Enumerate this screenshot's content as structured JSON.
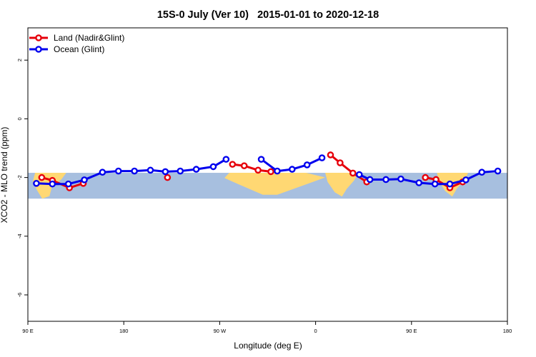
{
  "chart_data": {
    "type": "line",
    "title": "15S-0 July (Ver 10)   2015-01-01 to 2020-12-18",
    "xlabel": "Longitude (deg E)",
    "ylabel": "XCO2 - MLO trend (ppm)",
    "xlim": [
      90,
      540
    ],
    "ylim": [
      -6.9,
      3.1
    ],
    "x_ticks": [
      {
        "value": 90,
        "label": "90 E"
      },
      {
        "value": 180,
        "label": "180"
      },
      {
        "value": 270,
        "label": "90 W"
      },
      {
        "value": 360,
        "label": "0"
      },
      {
        "value": 450,
        "label": "90 E"
      },
      {
        "value": 540,
        "label": "180"
      }
    ],
    "y_ticks": [
      {
        "value": 2,
        "label": "2"
      },
      {
        "value": 0,
        "label": "0"
      },
      {
        "value": -2,
        "label": "-2"
      },
      {
        "value": -4,
        "label": "-4"
      },
      {
        "value": -6,
        "label": "-6"
      }
    ],
    "map_band": {
      "y_top": -1.84,
      "y_bottom": -2.72,
      "ocean_color": "#a7bfdf",
      "land_color": "#ffd873"
    },
    "legend": {
      "position": "top-left"
    },
    "series": [
      {
        "name": "Land (Nadir&Glint)",
        "color": "#e6000b",
        "segments": [
          [
            [
              103,
              -2.0
            ],
            [
              113,
              -2.1
            ],
            [
              129,
              -2.35
            ],
            [
              142,
              -2.2
            ]
          ],
          [
            [
              221,
              -2.0
            ]
          ],
          [
            [
              282,
              -1.55
            ],
            [
              293,
              -1.6
            ],
            [
              306,
              -1.75
            ],
            [
              318,
              -1.8
            ]
          ],
          [
            [
              374,
              -1.23
            ],
            [
              383,
              -1.5
            ],
            [
              395,
              -1.85
            ],
            [
              408,
              -2.15
            ]
          ],
          [
            [
              463,
              -2.0
            ],
            [
              473,
              -2.07
            ],
            [
              486,
              -2.35
            ],
            [
              498,
              -2.15
            ]
          ]
        ]
      },
      {
        "name": "Ocean (Glint)",
        "color": "#0000ee",
        "segments": [
          [
            [
              98,
              -2.2
            ],
            [
              113,
              -2.22
            ],
            [
              128,
              -2.22
            ],
            [
              143,
              -2.08
            ],
            [
              160,
              -1.82
            ],
            [
              175,
              -1.78
            ],
            [
              190,
              -1.78
            ],
            [
              205,
              -1.75
            ],
            [
              219,
              -1.8
            ],
            [
              233,
              -1.78
            ],
            [
              248,
              -1.72
            ],
            [
              264,
              -1.63
            ],
            [
              276,
              -1.38
            ]
          ],
          [
            [
              309,
              -1.38
            ],
            [
              324,
              -1.78
            ],
            [
              338,
              -1.72
            ],
            [
              352,
              -1.57
            ],
            [
              366,
              -1.33
            ]
          ],
          [
            [
              401,
              -1.9
            ],
            [
              411,
              -2.07
            ],
            [
              426,
              -2.07
            ],
            [
              440,
              -2.05
            ],
            [
              457,
              -2.18
            ],
            [
              472,
              -2.22
            ],
            [
              486,
              -2.22
            ],
            [
              501,
              -2.08
            ],
            [
              516,
              -1.82
            ],
            [
              531,
              -1.78
            ]
          ]
        ]
      }
    ]
  }
}
